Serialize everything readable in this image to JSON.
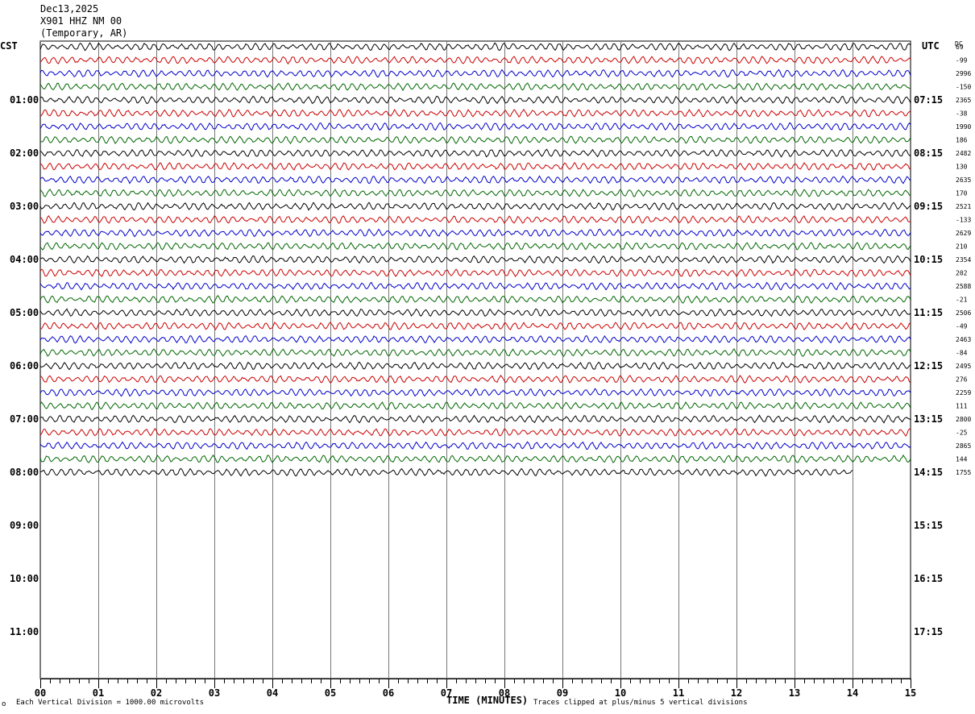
{
  "header": {
    "date": "Dec13,2025",
    "station": "X901 HHZ NM 00",
    "location": "(Temporary, AR)"
  },
  "left_timezone": "CST",
  "right_timezone": "UTC",
  "dc_label": "DC",
  "footer": {
    "scale_note": "Each Vertical Division = 1000.00 microvolts",
    "clip_note": "Traces clipped at plus/minus 5 vertical divisions",
    "mark": "o"
  },
  "chart_data": {
    "type": "line",
    "title": "",
    "xlabel": "TIME (MINUTES)",
    "x_ticks": [
      "00",
      "01",
      "02",
      "03",
      "04",
      "05",
      "06",
      "07",
      "08",
      "09",
      "10",
      "11",
      "12",
      "13",
      "14",
      "15"
    ],
    "xlim": [
      0,
      15
    ],
    "left_hour_labels": [
      "01:00",
      "02:00",
      "03:00",
      "04:00",
      "05:00",
      "06:00",
      "07:00",
      "08:00",
      "09:00",
      "10:00",
      "11:00"
    ],
    "right_hour_labels": [
      "07:15",
      "08:15",
      "09:15",
      "10:15",
      "11:15",
      "12:15",
      "13:15",
      "14:15",
      "15:15",
      "16:15",
      "17:15"
    ],
    "trace_colors": [
      "#000000",
      "#cc0000",
      "#0000cc",
      "#006600"
    ],
    "trace_interval_minutes": 15,
    "dc_offsets": [
      "69",
      "-99",
      "2996",
      "-150",
      "2365",
      "-38",
      "1990",
      "186",
      "2482",
      "130",
      "2635",
      "170",
      "2521",
      "-133",
      "2629",
      "210",
      "2354",
      "202",
      "2588",
      "-21",
      "2506",
      "-49",
      "2463",
      "-84",
      "2495",
      "276",
      "2259",
      "111",
      "2800",
      "-25",
      "2865",
      "144",
      "1755"
    ],
    "last_trace_end_minute": 14.0,
    "scale_microvolts_per_division": 1000.0,
    "clip_divisions": 5
  }
}
